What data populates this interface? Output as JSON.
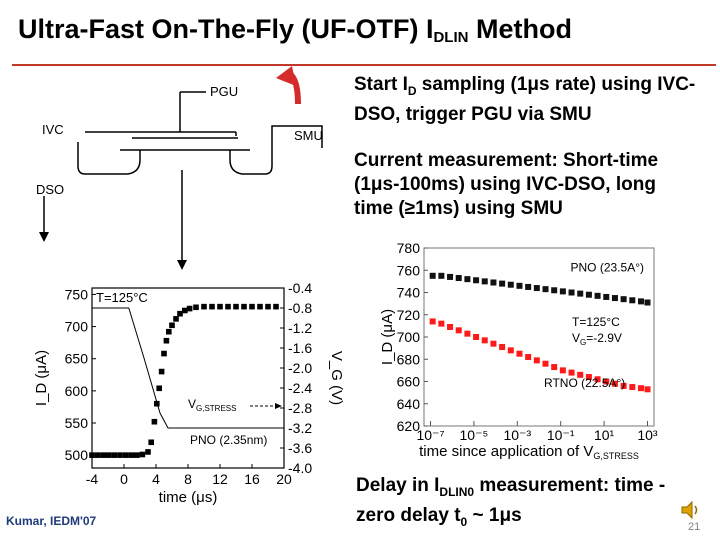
{
  "title": {
    "main": "Ultra-Fast On-The-Fly (UF-OTF) I",
    "sub": "DLIN",
    "tail": " Method"
  },
  "schematic": {
    "pgu": "PGU",
    "ivc": "IVC",
    "smu": "SMU",
    "dso": "DSO"
  },
  "bullets": {
    "b1": {
      "pre": "Start I",
      "sub": "D",
      "post": " sampling (1μs rate) using IVC-DSO, trigger PGU via SMU"
    },
    "b2": "Current measurement: Short-time (1μs-100ms) using IVC-DSO, long time (≥1ms) using SMU",
    "b3": {
      "pre": "Delay in I",
      "sub": "DLIN0",
      "mid": " measurement: time -zero delay t",
      "sub2": "0",
      "post": " ~ 1μs"
    }
  },
  "footer": "Kumar, IEDM'07",
  "page_number": "21",
  "colors": {
    "accent": "#c0392b",
    "red": "#ff1a1a",
    "black": "#111111"
  },
  "chart_data": [
    {
      "type": "scatter",
      "xlabel": "time (μs)",
      "ylabel_left": "I_D (μA)",
      "ylabel_right": "V_G (V)",
      "xlim": [
        -4,
        20
      ],
      "ylim_left": [
        480,
        760
      ],
      "ylim_right": [
        -4.0,
        -0.4
      ],
      "x_ticks": [
        "-4",
        "0",
        "4",
        "8",
        "12",
        "16",
        "20"
      ],
      "y_ticks_left": [
        "750",
        "700",
        "650",
        "600",
        "550",
        "500"
      ],
      "y_ticks_right": [
        "-0.4",
        "-0.8",
        "-1.2",
        "-1.6",
        "-2.0",
        "-2.4",
        "-2.8",
        "-3.2",
        "-3.6",
        "-4.0"
      ],
      "annotations": {
        "temp": "T=125°C",
        "vg": "V",
        "vg_sub": "G,STRESS",
        "device": "PNO (2.35nm)"
      },
      "series": [
        {
          "points": [
            [
              -4,
              500
            ],
            [
              -3.3,
              500
            ],
            [
              -2.6,
              500
            ],
            [
              -1.9,
              500
            ],
            [
              -1.2,
              500
            ],
            [
              -0.5,
              500
            ],
            [
              0.2,
              500
            ],
            [
              0.9,
              500
            ],
            [
              1.6,
              500
            ],
            [
              2.3,
              501
            ],
            [
              3.0,
              505
            ],
            [
              3.4,
              520
            ],
            [
              3.8,
              552
            ],
            [
              4.1,
              580
            ],
            [
              4.4,
              604
            ],
            [
              4.7,
              630
            ],
            [
              5.0,
              658
            ],
            [
              5.3,
              678
            ],
            [
              5.6,
              692
            ],
            [
              6.0,
              702
            ],
            [
              6.5,
              712
            ],
            [
              7.0,
              720
            ],
            [
              7.6,
              725
            ],
            [
              8.2,
              728
            ],
            [
              9,
              730
            ],
            [
              10,
              731
            ],
            [
              11,
              731
            ],
            [
              12,
              731
            ],
            [
              13,
              731
            ],
            [
              14,
              731
            ],
            [
              15,
              731
            ],
            [
              16,
              731
            ],
            [
              17,
              731
            ],
            [
              18,
              731
            ],
            [
              19,
              731
            ]
          ]
        }
      ],
      "vg_trace": [
        [
          -4,
          -0.8
        ],
        [
          0.6,
          -0.8
        ],
        [
          2.5,
          -1.8
        ],
        [
          4.5,
          -2.9
        ],
        [
          5.5,
          -3.2
        ],
        [
          20,
          -3.2
        ]
      ]
    },
    {
      "type": "scatter",
      "xscale": "log",
      "xlabel": "time since application of V",
      "xlabel_sub": "G,STRESS",
      "ylabel": "I_D (μA)",
      "ylim": [
        620,
        780
      ],
      "x_ticks": [
        "10⁻⁷",
        "10⁻⁵",
        "10⁻³",
        "10⁻¹",
        "10¹",
        "10³"
      ],
      "y_ticks": [
        "780",
        "760",
        "740",
        "720",
        "700",
        "680",
        "660",
        "640",
        "620"
      ],
      "annotations": {
        "temp": "T=125°C",
        "vg": "V",
        "vg_sub": "G",
        "vg_val": "=-2.9V"
      },
      "series": [
        {
          "name": "PNO (23.5A°)",
          "color": "#111111",
          "log_x": [
            -6.9,
            -6.5,
            -6.1,
            -5.7,
            -5.3,
            -4.9,
            -4.5,
            -4.1,
            -3.7,
            -3.3,
            -2.9,
            -2.5,
            -2.1,
            -1.7,
            -1.3,
            -0.9,
            -0.5,
            -0.1,
            0.3,
            0.7,
            1.1,
            1.5,
            1.9,
            2.3,
            2.7,
            3.0
          ],
          "values": [
            755,
            755,
            754,
            753,
            752,
            751,
            750,
            749,
            748,
            747,
            746,
            745,
            744,
            743,
            742,
            741,
            740,
            739,
            738,
            737,
            736,
            735,
            734,
            733,
            732,
            731
          ]
        },
        {
          "name": "RTNO (22.5A°)",
          "color": "#ff1a1a",
          "log_x": [
            -6.9,
            -6.5,
            -6.1,
            -5.7,
            -5.3,
            -4.9,
            -4.5,
            -4.1,
            -3.7,
            -3.3,
            -2.9,
            -2.5,
            -2.1,
            -1.7,
            -1.3,
            -0.9,
            -0.5,
            -0.1,
            0.3,
            0.7,
            1.1,
            1.5,
            1.9,
            2.3,
            2.7,
            3.0
          ],
          "values": [
            714,
            712,
            709,
            706,
            703,
            700,
            697,
            694,
            691,
            688,
            685,
            682,
            679,
            676,
            673,
            670,
            668,
            666,
            664,
            662,
            660,
            658,
            656,
            655,
            654,
            653
          ]
        }
      ]
    }
  ]
}
